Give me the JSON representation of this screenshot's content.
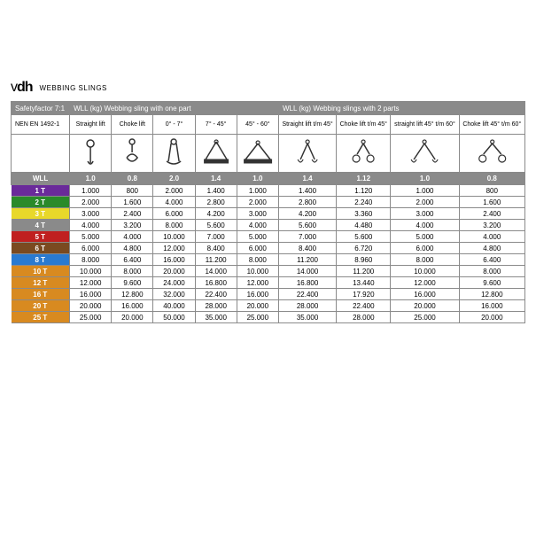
{
  "logo": {
    "v": "v",
    "dh": "dh"
  },
  "title": "WEBBING SLINGS",
  "header1": {
    "safety": "Safetyfactor 7:1",
    "one": "WLL (kg) Webbing sling with one part",
    "two": "WLL (kg) Webbing slings with 2 parts"
  },
  "header2": {
    "nen": "NEN EN 1492-1",
    "c1": "Straight lift",
    "c2": "Choke lift",
    "c3": "0° - 7°",
    "c4": "7° - 45°",
    "c5": "45° - 60°",
    "c6": "Straight lift t/m 45°",
    "c7": "Choke lift t/m 45°",
    "c8": "straight lift 45° t/m 60°",
    "c9": "Choke lift 45° t/m 60°"
  },
  "wll_label": "WLL",
  "factors": [
    "1.0",
    "0.8",
    "2.0",
    "1.4",
    "1.0",
    "1.4",
    "1.12",
    "1.0",
    "0.8"
  ],
  "row_colors": [
    "#6a2a9a",
    "#2a8a2a",
    "#e8d82a",
    "#8a8a8a",
    "#c02020",
    "#7a4a20",
    "#2a7ad0",
    "#d88a20",
    "#d88a20",
    "#d88a20",
    "#d88a20",
    "#d88a20"
  ],
  "rows": [
    {
      "label": "1 T",
      "v": [
        "1.000",
        "800",
        "2.000",
        "1.400",
        "1.000",
        "1.400",
        "1.120",
        "1.000",
        "800"
      ]
    },
    {
      "label": "2 T",
      "v": [
        "2.000",
        "1.600",
        "4.000",
        "2.800",
        "2.000",
        "2.800",
        "2.240",
        "2.000",
        "1.600"
      ]
    },
    {
      "label": "3 T",
      "v": [
        "3.000",
        "2.400",
        "6.000",
        "4.200",
        "3.000",
        "4.200",
        "3.360",
        "3.000",
        "2.400"
      ]
    },
    {
      "label": "4 T",
      "v": [
        "4.000",
        "3.200",
        "8.000",
        "5.600",
        "4.000",
        "5.600",
        "4.480",
        "4.000",
        "3.200"
      ]
    },
    {
      "label": "5 T",
      "v": [
        "5.000",
        "4.000",
        "10.000",
        "7.000",
        "5.000",
        "7.000",
        "5.600",
        "5.000",
        "4.000"
      ]
    },
    {
      "label": "6 T",
      "v": [
        "6.000",
        "4.800",
        "12.000",
        "8.400",
        "6.000",
        "8.400",
        "6.720",
        "6.000",
        "4.800"
      ]
    },
    {
      "label": "8 T",
      "v": [
        "8.000",
        "6.400",
        "16.000",
        "11.200",
        "8.000",
        "11.200",
        "8.960",
        "8.000",
        "6.400"
      ]
    },
    {
      "label": "10 T",
      "v": [
        "10.000",
        "8.000",
        "20.000",
        "14.000",
        "10.000",
        "14.000",
        "11.200",
        "10.000",
        "8.000"
      ]
    },
    {
      "label": "12 T",
      "v": [
        "12.000",
        "9.600",
        "24.000",
        "16.800",
        "12.000",
        "16.800",
        "13.440",
        "12.000",
        "9.600"
      ]
    },
    {
      "label": "16 T",
      "v": [
        "16.000",
        "12.800",
        "32.000",
        "22.400",
        "16.000",
        "22.400",
        "17.920",
        "16.000",
        "12.800"
      ]
    },
    {
      "label": "20 T",
      "v": [
        "20.000",
        "16.000",
        "40.000",
        "28.000",
        "20.000",
        "28.000",
        "22.400",
        "20.000",
        "16.000"
      ]
    },
    {
      "label": "25 T",
      "v": [
        "25.000",
        "20.000",
        "50.000",
        "35.000",
        "25.000",
        "35.000",
        "28.000",
        "25.000",
        "20.000"
      ]
    }
  ],
  "colors": {
    "header_bg": "#8a8a8a",
    "text_white": "#ffffff",
    "stroke": "#333333"
  }
}
